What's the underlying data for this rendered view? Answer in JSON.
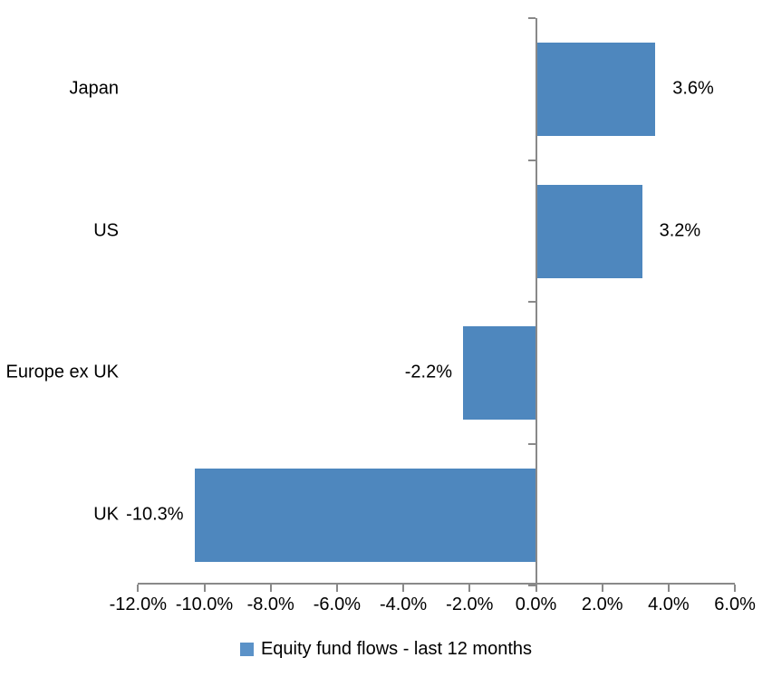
{
  "chart_data": {
    "type": "bar",
    "orientation": "horizontal",
    "title": "",
    "xlabel": "",
    "ylabel": "",
    "categories": [
      "Japan",
      "US",
      "Europe ex UK",
      "UK"
    ],
    "series": [
      {
        "name": "Equity fund flows - last 12 months",
        "values": [
          3.6,
          3.2,
          -2.2,
          -10.3
        ],
        "labels": [
          "3.6%",
          "3.2%",
          "-2.2%",
          "-10.3%"
        ],
        "color": "#4E87BE"
      }
    ],
    "xlim": [
      -12,
      6
    ],
    "x_ticks": [
      {
        "value": -12,
        "label": "-12.0%"
      },
      {
        "value": -10,
        "label": "-10.0%"
      },
      {
        "value": -8,
        "label": "-8.0%"
      },
      {
        "value": -6,
        "label": "-6.0%"
      },
      {
        "value": -4,
        "label": "-4.0%"
      },
      {
        "value": -2,
        "label": "-2.0%"
      },
      {
        "value": 0,
        "label": "0.0%"
      },
      {
        "value": 2,
        "label": "2.0%"
      },
      {
        "value": 4,
        "label": "4.0%"
      },
      {
        "value": 6,
        "label": "6.0%"
      }
    ],
    "grid": false,
    "legend_position": "bottom",
    "colors": {
      "bar": "#4E87BE",
      "legend_marker": "#5B92C8",
      "axis": "#898989",
      "text": "#000000",
      "background": "#FFFFFF"
    }
  }
}
